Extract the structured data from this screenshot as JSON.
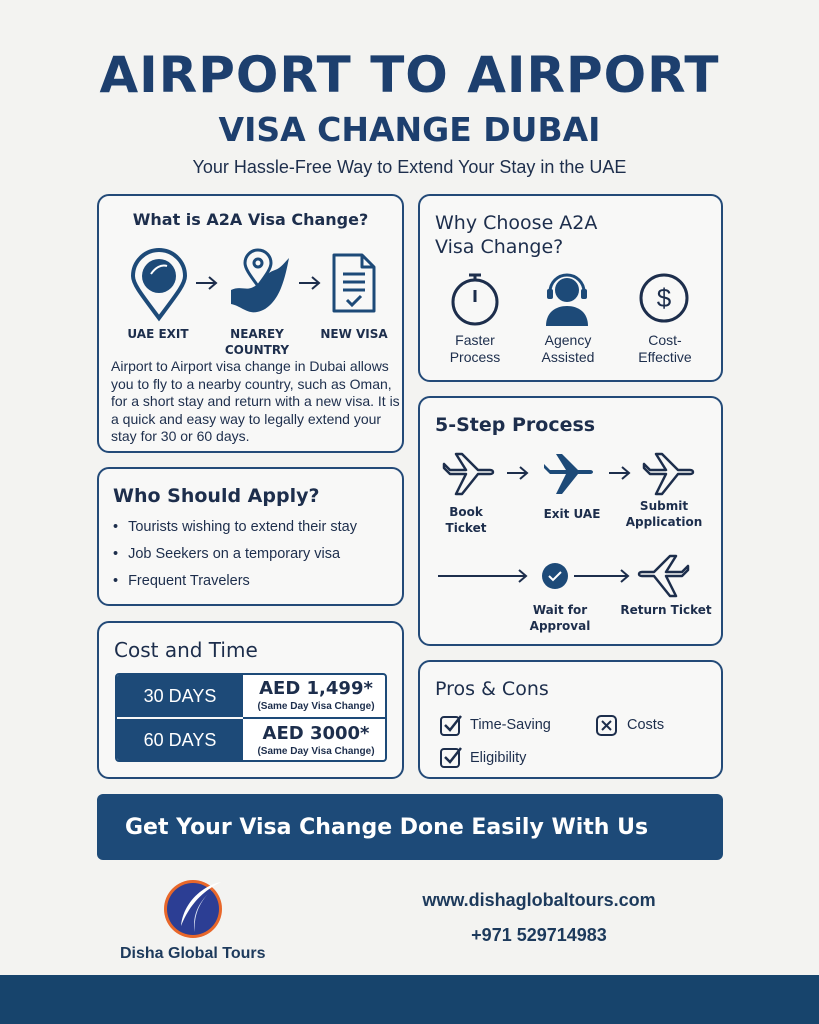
{
  "header": {
    "title": "AIRPORT TO AIRPORT",
    "subtitle": "VISA CHANGE DUBAI",
    "tagline": "Your Hassle-Free Way to Extend Your Stay in the UAE"
  },
  "what": {
    "heading": "What is A2A Visa Change?",
    "steps": [
      {
        "label": "UAE EXIT",
        "icon": "location-pin-icon"
      },
      {
        "label": "NEAREY COUNTRY",
        "icon": "map-pin-icon"
      },
      {
        "label": "NEW VISA",
        "icon": "document-check-icon"
      }
    ],
    "description": "Airport to Airport visa change in Dubai allows you to fly to a nearby country, such as Oman, for a short stay and return with a new visa. It is a quick and easy way to legally extend your stay for 30 or 60 days."
  },
  "why": {
    "heading": "Why Choose A2A Visa Change?",
    "items": [
      {
        "label": "Faster Process",
        "icon": "stopwatch-icon"
      },
      {
        "label": "Agency Assisted",
        "icon": "headset-agent-icon"
      },
      {
        "label": "Cost-Effective",
        "icon": "dollar-icon"
      }
    ]
  },
  "who": {
    "heading": "Who Should Apply?",
    "items": [
      "Tourists wishing to extend their stay",
      "Job Seekers on a temporary visa",
      "Frequent Travelers"
    ]
  },
  "process": {
    "heading": "5-Step Process",
    "steps": [
      "Book Ticket",
      "Exit UAE",
      "Submit Application",
      "Wait for Approval",
      "Return Ticket"
    ]
  },
  "cost": {
    "heading": "Cost and Time",
    "rows": [
      {
        "duration": "30 DAYS",
        "price": "AED 1,499*",
        "note": "(Same Day Visa Change)"
      },
      {
        "duration": "60 DAYS",
        "price": "AED 3000*",
        "note": "(Same Day Visa Change)"
      }
    ]
  },
  "pros": {
    "heading": "Pros & Cons",
    "pros": [
      "Time-Saving",
      "Eligibility"
    ],
    "cons": [
      "Costs"
    ]
  },
  "cta": {
    "label": "Get Your Visa Change Done Easily With Us"
  },
  "footer": {
    "brand": "Disha Global Tours",
    "website": "www.dishaglobaltours.com",
    "phone": "+971 529714983"
  },
  "colors": {
    "navy": "#1d4a78",
    "text": "#1d2e4c",
    "logo_orange": "#e8672a",
    "logo_blue": "#2c3e94"
  }
}
